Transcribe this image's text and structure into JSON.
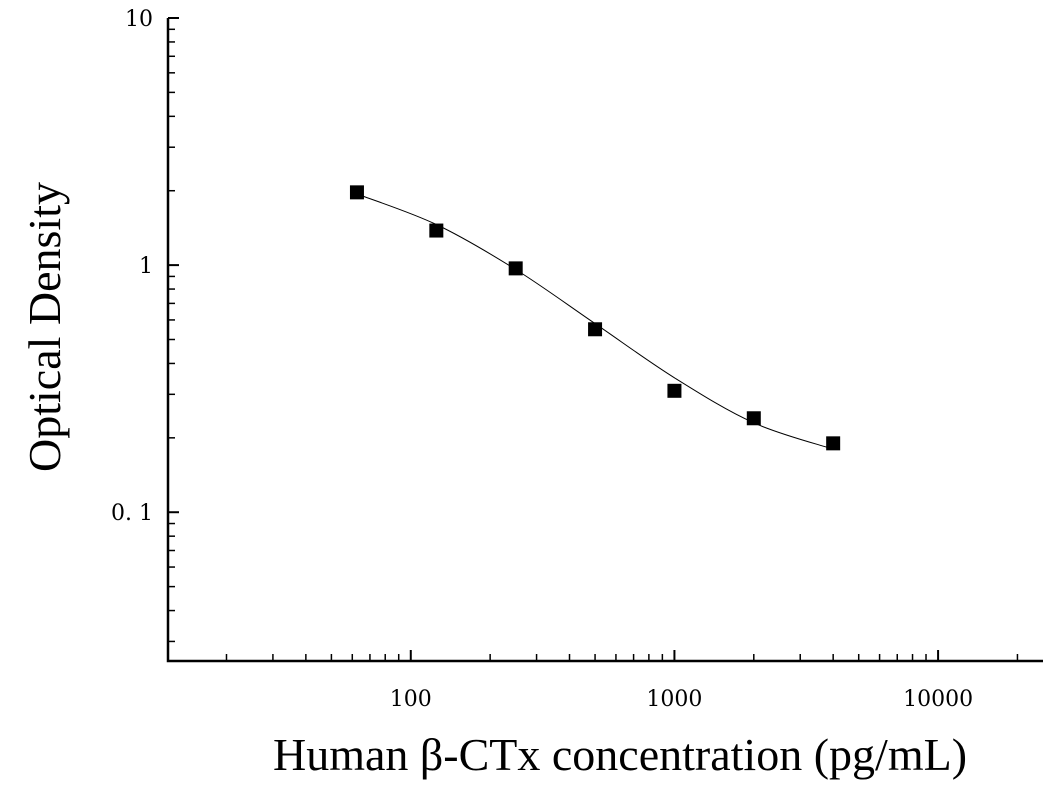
{
  "chart_data": {
    "type": "scatter",
    "title": "",
    "xlabel": "Human β-CTx concentration (pg/mL)",
    "ylabel": "Optical Density",
    "x_scale": "log",
    "y_scale": "log",
    "xlim": [
      12,
      25000
    ],
    "ylim": [
      0.025,
      10
    ],
    "x_ticks": [
      100,
      1000,
      10000
    ],
    "x_tick_labels": [
      "100",
      "1000",
      "10000"
    ],
    "y_ticks": [
      10,
      1,
      0.1
    ],
    "y_tick_labels": [
      "10",
      "1",
      "0. 1"
    ],
    "grid": false,
    "legend": "none",
    "series": [
      {
        "x": [
          62.5,
          125,
          250,
          500,
          1000,
          2000,
          4000
        ],
        "y": [
          1.97,
          1.38,
          0.97,
          0.55,
          0.31,
          0.24,
          0.19
        ]
      }
    ],
    "fit_curve": {
      "type": "4PL",
      "x_range": [
        62.5,
        4000
      ],
      "y": [
        1.94,
        1.46,
        0.96,
        0.58,
        0.35,
        0.23,
        0.18
      ]
    },
    "colors": {
      "marker": "#000000",
      "curve": "#000000",
      "axis": "#000000"
    }
  }
}
